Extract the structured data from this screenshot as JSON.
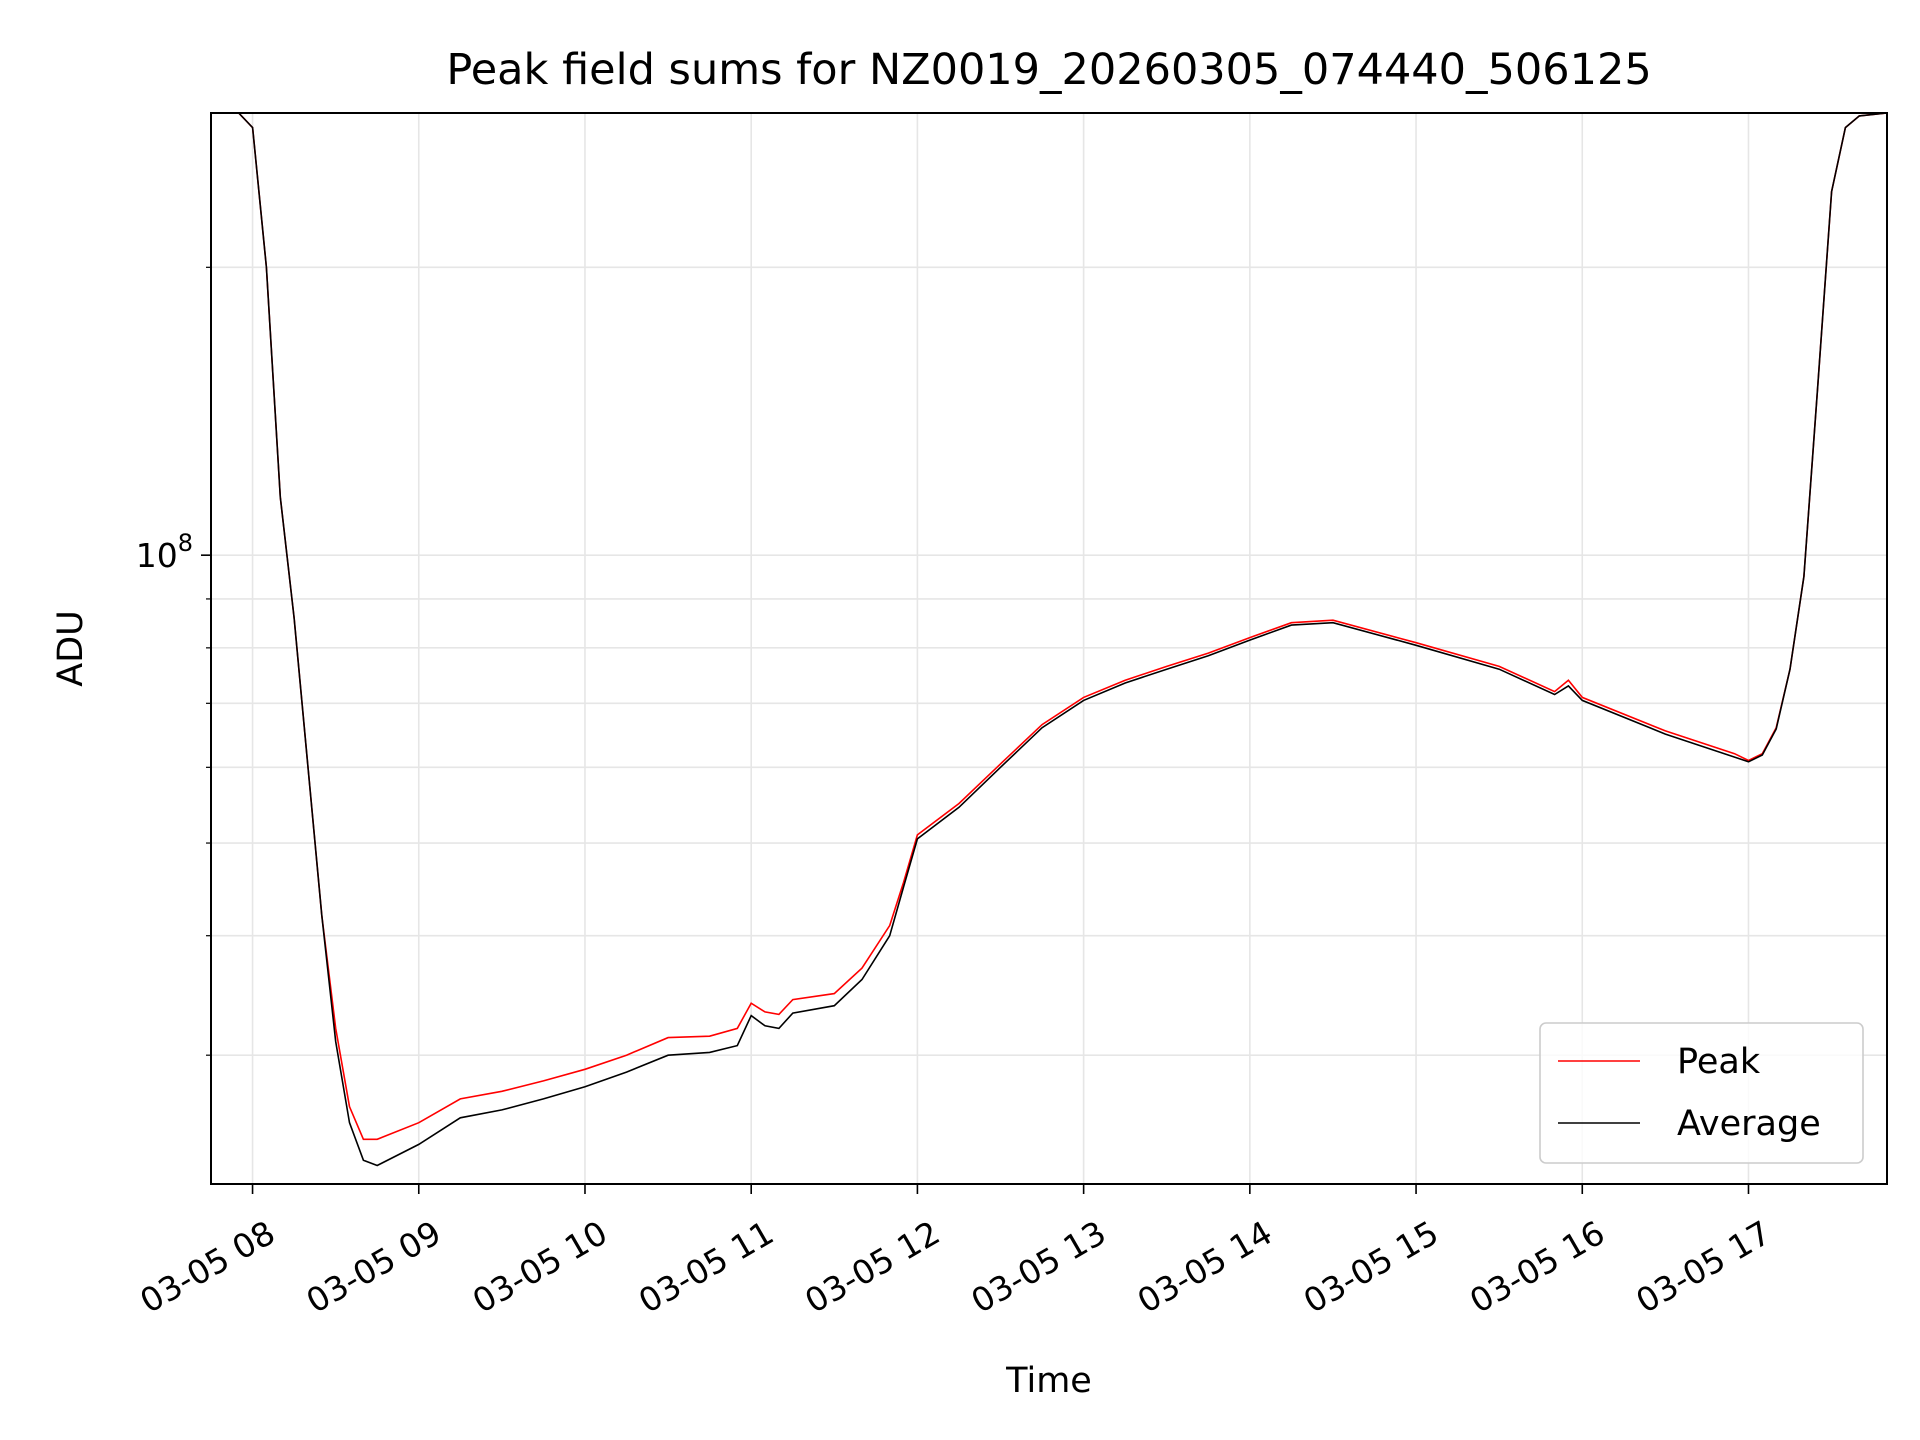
{
  "chart_data": {
    "type": "line",
    "title": "Peak field sums for NZ0019_20260305_074440_506125",
    "xlabel": "Time",
    "ylabel": "ADU",
    "y_scale": "log",
    "grid": true,
    "legend_position": "lower-right",
    "xlim": [
      "2026-03-05 07:45",
      "2026-03-05 17:50"
    ],
    "ylim": [
      22000000,
      290000000
    ],
    "x_ticks": [
      "03-05 08",
      "03-05 09",
      "03-05 10",
      "03-05 11",
      "03-05 12",
      "03-05 13",
      "03-05 14",
      "03-05 15",
      "03-05 16",
      "03-05 17"
    ],
    "y_major_ticks": [
      {
        "value": 100000000,
        "base": "10",
        "exponent": "8"
      }
    ],
    "y_minor_ticks": [
      30000000,
      40000000,
      50000000,
      60000000,
      70000000,
      80000000,
      90000000,
      200000000
    ],
    "series": [
      {
        "name": "Peak",
        "color": "#ff0000",
        "x": [
          "2026-03-05 07:45",
          "2026-03-05 07:55",
          "2026-03-05 08:00",
          "2026-03-05 08:05",
          "2026-03-05 08:10",
          "2026-03-05 08:15",
          "2026-03-05 08:20",
          "2026-03-05 08:25",
          "2026-03-05 08:30",
          "2026-03-05 08:35",
          "2026-03-05 08:40",
          "2026-03-05 08:45",
          "2026-03-05 09:00",
          "2026-03-05 09:15",
          "2026-03-05 09:30",
          "2026-03-05 09:45",
          "2026-03-05 10:00",
          "2026-03-05 10:15",
          "2026-03-05 10:30",
          "2026-03-05 10:45",
          "2026-03-05 10:55",
          "2026-03-05 11:00",
          "2026-03-05 11:05",
          "2026-03-05 11:10",
          "2026-03-05 11:15",
          "2026-03-05 11:30",
          "2026-03-05 11:40",
          "2026-03-05 11:50",
          "2026-03-05 11:55",
          "2026-03-05 12:00",
          "2026-03-05 12:15",
          "2026-03-05 12:30",
          "2026-03-05 12:45",
          "2026-03-05 13:00",
          "2026-03-05 13:15",
          "2026-03-05 13:30",
          "2026-03-05 13:45",
          "2026-03-05 14:00",
          "2026-03-05 14:15",
          "2026-03-05 14:30",
          "2026-03-05 15:00",
          "2026-03-05 15:30",
          "2026-03-05 15:50",
          "2026-03-05 15:55",
          "2026-03-05 16:00",
          "2026-03-05 16:30",
          "2026-03-05 16:55",
          "2026-03-05 17:00",
          "2026-03-05 17:05",
          "2026-03-05 17:10",
          "2026-03-05 17:15",
          "2026-03-05 17:20",
          "2026-03-05 17:25",
          "2026-03-05 17:30",
          "2026-03-05 17:35",
          "2026-03-05 17:40",
          "2026-03-05 17:50"
        ],
        "y": [
          290000000,
          290000000,
          280000000,
          200000000,
          115000000,
          86000000,
          60000000,
          42000000,
          32000000,
          26500000,
          24500000,
          24500000,
          25500000,
          27000000,
          27500000,
          28200000,
          29000000,
          30000000,
          31300000,
          31400000,
          32000000,
          34000000,
          33300000,
          33100000,
          34300000,
          34800000,
          37000000,
          41000000,
          45500000,
          51000000,
          55000000,
          60500000,
          66500000,
          71000000,
          74000000,
          76500000,
          79000000,
          82000000,
          85000000,
          85500000,
          81000000,
          76500000,
          72000000,
          74000000,
          71000000,
          65500000,
          62000000,
          61000000,
          62000000,
          66000000,
          76000000,
          95000000,
          150000000,
          240000000,
          280000000,
          288000000,
          290000000
        ]
      },
      {
        "name": "Average",
        "color": "#000000",
        "x": [
          "2026-03-05 07:45",
          "2026-03-05 07:55",
          "2026-03-05 08:00",
          "2026-03-05 08:05",
          "2026-03-05 08:10",
          "2026-03-05 08:15",
          "2026-03-05 08:20",
          "2026-03-05 08:25",
          "2026-03-05 08:30",
          "2026-03-05 08:35",
          "2026-03-05 08:40",
          "2026-03-05 08:45",
          "2026-03-05 09:00",
          "2026-03-05 09:15",
          "2026-03-05 09:30",
          "2026-03-05 09:45",
          "2026-03-05 10:00",
          "2026-03-05 10:15",
          "2026-03-05 10:30",
          "2026-03-05 10:45",
          "2026-03-05 10:55",
          "2026-03-05 11:00",
          "2026-03-05 11:05",
          "2026-03-05 11:10",
          "2026-03-05 11:15",
          "2026-03-05 11:30",
          "2026-03-05 11:40",
          "2026-03-05 11:50",
          "2026-03-05 11:55",
          "2026-03-05 12:00",
          "2026-03-05 12:15",
          "2026-03-05 12:30",
          "2026-03-05 12:45",
          "2026-03-05 13:00",
          "2026-03-05 13:15",
          "2026-03-05 13:30",
          "2026-03-05 13:45",
          "2026-03-05 14:00",
          "2026-03-05 14:15",
          "2026-03-05 14:30",
          "2026-03-05 15:00",
          "2026-03-05 15:30",
          "2026-03-05 15:50",
          "2026-03-05 15:55",
          "2026-03-05 16:00",
          "2026-03-05 16:30",
          "2026-03-05 16:55",
          "2026-03-05 17:00",
          "2026-03-05 17:05",
          "2026-03-05 17:10",
          "2026-03-05 17:15",
          "2026-03-05 17:20",
          "2026-03-05 17:25",
          "2026-03-05 17:30",
          "2026-03-05 17:35",
          "2026-03-05 17:40",
          "2026-03-05 17:50"
        ],
        "y": [
          290000000,
          290000000,
          280000000,
          200000000,
          115000000,
          86000000,
          60000000,
          42000000,
          31000000,
          25500000,
          23300000,
          23000000,
          24200000,
          25800000,
          26300000,
          27000000,
          27800000,
          28800000,
          30000000,
          30200000,
          30700000,
          33000000,
          32200000,
          32000000,
          33200000,
          33800000,
          36000000,
          40000000,
          45000000,
          50500000,
          54500000,
          60000000,
          66000000,
          70500000,
          73500000,
          76000000,
          78500000,
          81500000,
          84500000,
          85000000,
          80500000,
          76000000,
          71500000,
          73000000,
          70500000,
          65000000,
          61500000,
          60800000,
          61800000,
          65800000,
          76000000,
          95000000,
          150000000,
          240000000,
          280000000,
          288000000,
          290000000
        ]
      }
    ]
  }
}
